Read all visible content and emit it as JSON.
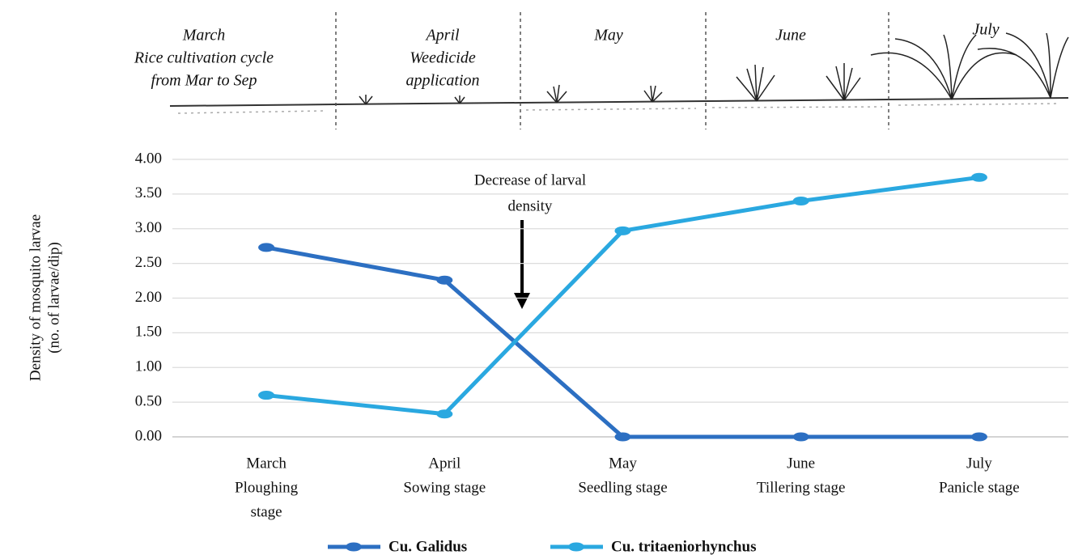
{
  "chart_data": {
    "type": "line",
    "cycle_labels": [
      [
        "March",
        "Rice cultivation cycle",
        "from Mar to Sep"
      ],
      [
        "April",
        "Weedicide",
        "application"
      ],
      [
        "May"
      ],
      [
        "June"
      ],
      [
        "July"
      ]
    ],
    "categories": [
      [
        "March",
        "Ploughing",
        "stage"
      ],
      [
        "April",
        "Sowing stage"
      ],
      [
        "May",
        "Seedling stage"
      ],
      [
        "June",
        "Tillering stage"
      ],
      [
        "July",
        "Panicle stage"
      ]
    ],
    "series": [
      {
        "name": "Cu. Galidus",
        "color": "#2c6fc2",
        "values": [
          2.73,
          2.26,
          0,
          0,
          0
        ]
      },
      {
        "name": "Cu. tritaeniorhynchus",
        "color": "#2aa8e0",
        "values": [
          0.6,
          0.33,
          2.97,
          3.4,
          3.74
        ]
      }
    ],
    "ylabel": [
      "Density of mosquito larvae",
      "(no. of larvae/dip)"
    ],
    "annotation": [
      "Decrease of larval",
      "density"
    ],
    "ylim": [
      0,
      4
    ],
    "yticks": [
      {
        "value": 0,
        "label": "0.00"
      },
      {
        "value": 0.5,
        "label": "0.50"
      },
      {
        "value": 1,
        "label": "1.00"
      },
      {
        "value": 1.5,
        "label": "1.50"
      },
      {
        "value": 2,
        "label": "2.00"
      },
      {
        "value": 2.5,
        "label": "2.50"
      },
      {
        "value": 3,
        "label": "3.00"
      },
      {
        "value": 3.5,
        "label": "3.50"
      },
      {
        "value": 4,
        "label": "4.00"
      }
    ],
    "grid": true
  }
}
